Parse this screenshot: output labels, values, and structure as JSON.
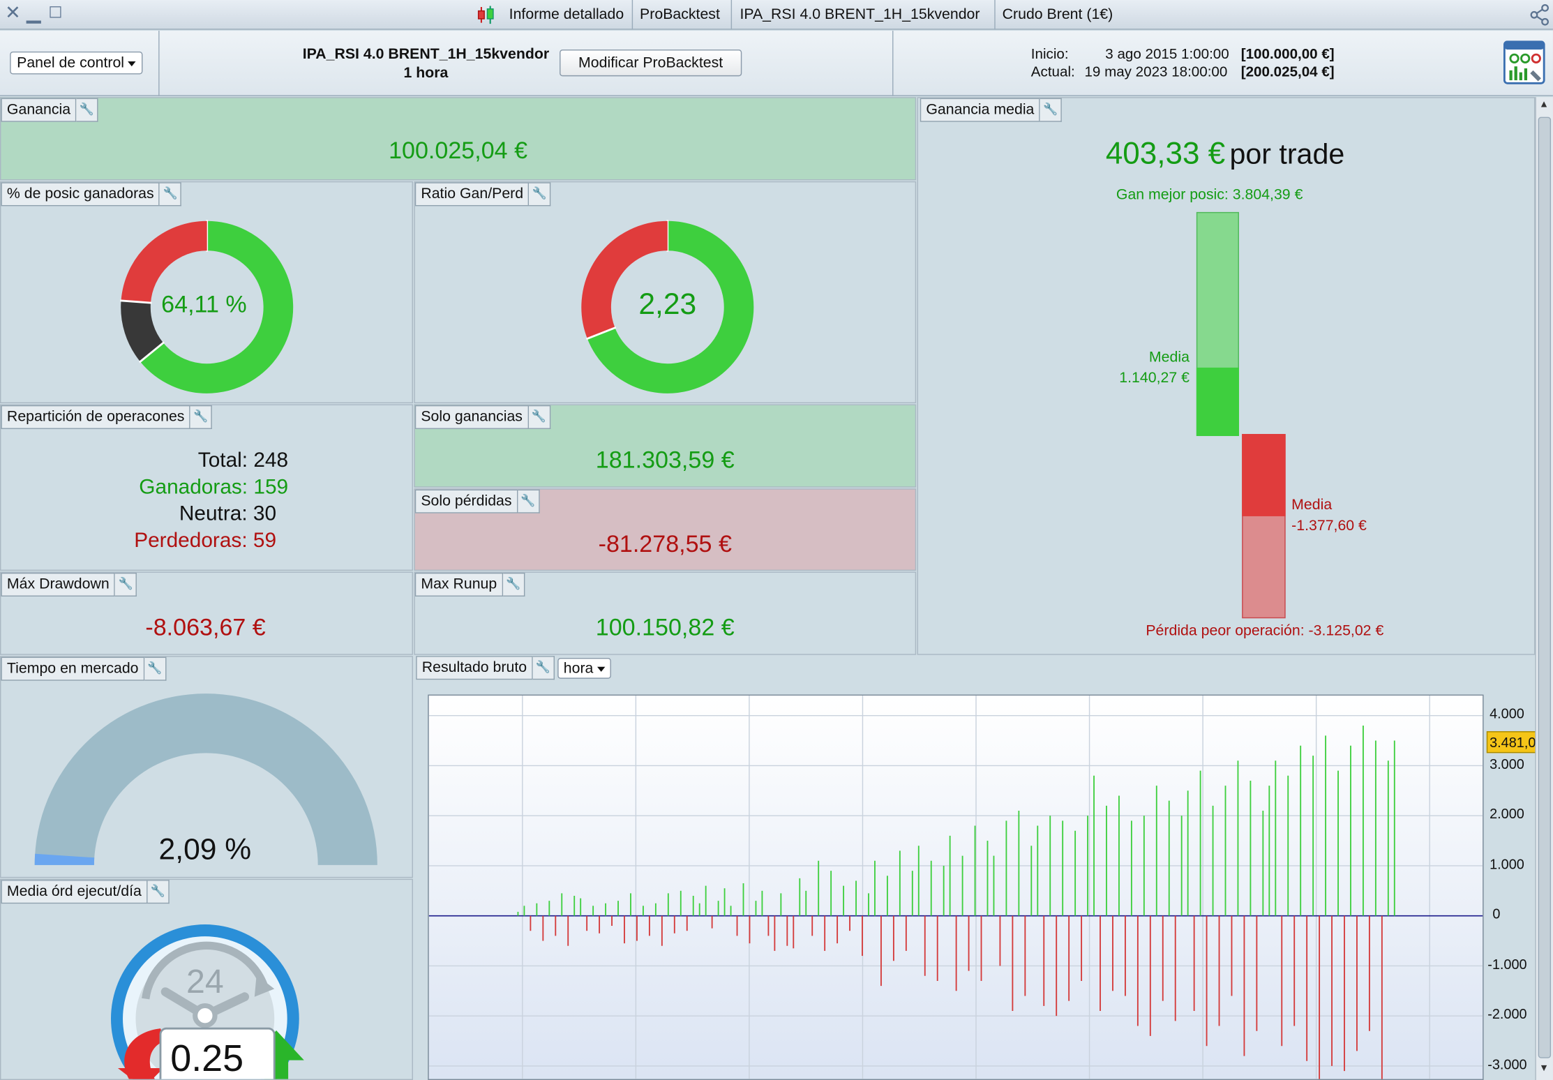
{
  "titlebar": {
    "tabs": [
      {
        "label": "Informe detallado"
      },
      {
        "label": "ProBacktest"
      },
      {
        "label": "IPA_RSI 4.0 BRENT_1H_15kvendor"
      },
      {
        "label": "Crudo Brent (1€)"
      }
    ]
  },
  "header": {
    "panel_select": "Panel de control",
    "strategy_name": "IPA_RSI 4.0 BRENT_1H_15kvendor",
    "timeframe": "1 hora",
    "modify_button": "Modificar ProBacktest",
    "start_label": "Inicio:",
    "start_date": "3 ago 2015 1:00:00",
    "start_value": "[100.000,00 €]",
    "current_label": "Actual:",
    "current_date": "19 may 2023 18:00:00",
    "current_value": "[200.025,04 €]"
  },
  "panels": {
    "gain": {
      "label": "Ganancia",
      "value": "100.025,04 €"
    },
    "win_pct": {
      "label": "% de posic ganadoras",
      "value": "64,11 %",
      "segments": {
        "win": 159,
        "neutral": 30,
        "loss": 59
      }
    },
    "ratio": {
      "label": "Ratio Gan/Perd",
      "value": "2,23",
      "green_fraction": 0.6905
    },
    "distribution": {
      "label": "Repartición de operacones",
      "total": "Total: 248",
      "winners": "Ganadoras: 159",
      "neutral": "Neutra: 30",
      "losers": "Perdedoras: 59"
    },
    "only_gains": {
      "label": "Solo ganancias",
      "value": "181.303,59 €"
    },
    "only_losses": {
      "label": "Solo pérdidas",
      "value": "-81.278,55 €"
    },
    "max_drawdown": {
      "label": "Máx Drawdown",
      "value": "-8.063,67 €"
    },
    "max_runup": {
      "label": "Max Runup",
      "value": "100.150,82 €"
    },
    "avg_gain": {
      "label": "Ganancia media",
      "value": "403,33 €",
      "suffix": "por trade",
      "best_trade": "Gan mejor posic: 3.804,39 €",
      "avg_win_label": "Media",
      "avg_win_value": "1.140,27 €",
      "avg_loss_label": "Media",
      "avg_loss_value": "-1.377,60 €",
      "worst_trade": "Pérdida peor operación: -3.125,02 €"
    },
    "time_in_market": {
      "label": "Tiempo en mercado",
      "value": "2,09 %",
      "fraction": 0.0209
    },
    "avg_orders_day": {
      "label": "Media órd ejecut/día",
      "value": "0.25",
      "dial_number": "24"
    },
    "gross_result": {
      "label": "Resultado bruto",
      "interval": "hora",
      "last_value": "3.481,0"
    }
  },
  "colors": {
    "win": "#3ecf3e",
    "loss": "#e03c3c",
    "neutral": "#383838",
    "gauge": "#9dbbc8"
  },
  "chart_data": {
    "type": "bar",
    "title": "Resultado bruto",
    "ylim": [
      -3300,
      4400
    ],
    "yticks": [
      4000,
      3000,
      2000,
      1000,
      0,
      -1000,
      -2000,
      -3000
    ],
    "ytick_labels": [
      "4.000",
      "3.000",
      "2.000",
      "1.000",
      "0",
      "-1.000",
      "-2.000",
      "-3.000"
    ],
    "grid": true,
    "values": [
      80,
      200,
      -300,
      250,
      -500,
      300,
      -400,
      450,
      -600,
      400,
      350,
      -300,
      200,
      -350,
      250,
      -200,
      300,
      -550,
      450,
      -500,
      200,
      -400,
      250,
      -600,
      450,
      -350,
      500,
      -300,
      400,
      250,
      600,
      -250,
      300,
      550,
      200,
      -400,
      650,
      -550,
      300,
      500,
      -400,
      -700,
      450,
      -600,
      -650,
      750,
      500,
      -400,
      1100,
      -700,
      900,
      -550,
      600,
      -300,
      700,
      -800,
      450,
      1100,
      -1400,
      800,
      -900,
      1300,
      -700,
      900,
      1400,
      -1200,
      1100,
      -1300,
      1000,
      1600,
      -1500,
      1200,
      -1100,
      1800,
      -1300,
      1500,
      1200,
      -1000,
      1900,
      -1900,
      2100,
      -1600,
      1400,
      1800,
      -1800,
      2000,
      -2000,
      1900,
      -1700,
      1700,
      -1300,
      2000,
      2800,
      -1900,
      2200,
      -1500,
      2400,
      -1600,
      1900,
      -2200,
      2000,
      -2400,
      2600,
      -1700,
      2300,
      -2100,
      2000,
      2500,
      -1900,
      2900,
      -2600,
      2200,
      -2200,
      2600,
      -1600,
      3100,
      -2800,
      2700,
      -2300,
      2100,
      2600,
      3100,
      -2600,
      2800,
      -2200,
      3400,
      -2900,
      3200,
      -3300,
      3600,
      -3000,
      2900,
      -3100,
      3400,
      -2700,
      3800,
      -2300,
      3500,
      -3400,
      3100,
      3500
    ]
  }
}
